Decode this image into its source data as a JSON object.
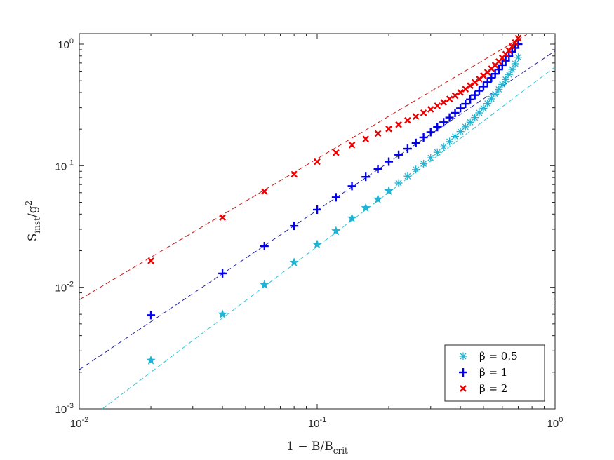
{
  "chart_data": {
    "type": "scatter",
    "xscale": "log",
    "yscale": "log",
    "xlim": [
      0.01,
      1
    ],
    "ylim": [
      0.001,
      1.2
    ],
    "xticks": [
      {
        "value": 0.01,
        "base": "10",
        "exp": "-2"
      },
      {
        "value": 0.1,
        "base": "10",
        "exp": "-1"
      },
      {
        "value": 1,
        "base": "10",
        "exp": "0"
      }
    ],
    "yticks": [
      {
        "value": 0.001,
        "base": "10",
        "exp": "-3"
      },
      {
        "value": 0.01,
        "base": "10",
        "exp": "-2"
      },
      {
        "value": 0.1,
        "base": "10",
        "exp": "-1"
      },
      {
        "value": 1,
        "base": "10",
        "exp": "0"
      }
    ],
    "xlabel": {
      "main": "1 − B/B",
      "sub": "crit"
    },
    "ylabel": {
      "main": "S",
      "sub": "inst",
      "tail": "/g",
      "sup": "2"
    },
    "grid": false,
    "legend_position": "bottom-right",
    "series": [
      {
        "label": "β = 0.5",
        "color": "#1fb3d2",
        "marker": "asterisk",
        "fit_color": "#30c8d8",
        "x": [
          0.02,
          0.04,
          0.06,
          0.08,
          0.1,
          0.12,
          0.14,
          0.16,
          0.18,
          0.2,
          0.22,
          0.24,
          0.26,
          0.28,
          0.3,
          0.32,
          0.34,
          0.36,
          0.38,
          0.4,
          0.42,
          0.44,
          0.46,
          0.48,
          0.5,
          0.52,
          0.54,
          0.56,
          0.58,
          0.6,
          0.62,
          0.64,
          0.66,
          0.68,
          0.7
        ],
        "y": [
          0.0025,
          0.006,
          0.0105,
          0.016,
          0.0225,
          0.029,
          0.037,
          0.045,
          0.053,
          0.062,
          0.072,
          0.082,
          0.093,
          0.104,
          0.116,
          0.129,
          0.143,
          0.158,
          0.174,
          0.191,
          0.209,
          0.228,
          0.249,
          0.272,
          0.297,
          0.325,
          0.355,
          0.388,
          0.425,
          0.466,
          0.512,
          0.563,
          0.62,
          0.69,
          0.78
        ],
        "fit_x": [
          0.0125,
          1
        ],
        "fit_y": [
          0.001,
          0.65
        ]
      },
      {
        "label": "β = 1",
        "color": "#0000ee",
        "marker": "plus",
        "fit_color": "#1a1aa8",
        "x": [
          0.02,
          0.04,
          0.06,
          0.08,
          0.1,
          0.12,
          0.14,
          0.16,
          0.18,
          0.2,
          0.22,
          0.24,
          0.26,
          0.28,
          0.3,
          0.32,
          0.34,
          0.36,
          0.38,
          0.4,
          0.42,
          0.44,
          0.46,
          0.48,
          0.5,
          0.52,
          0.54,
          0.56,
          0.58,
          0.6,
          0.62,
          0.64,
          0.66,
          0.68,
          0.7
        ],
        "y": [
          0.0059,
          0.013,
          0.0218,
          0.032,
          0.0435,
          0.055,
          0.068,
          0.081,
          0.094,
          0.108,
          0.123,
          0.138,
          0.154,
          0.171,
          0.189,
          0.208,
          0.228,
          0.249,
          0.272,
          0.297,
          0.323,
          0.351,
          0.381,
          0.413,
          0.448,
          0.486,
          0.527,
          0.571,
          0.619,
          0.672,
          0.73,
          0.794,
          0.865,
          0.93,
          1.0
        ],
        "fit_x": [
          0.01,
          1
        ],
        "fit_y": [
          0.0021,
          0.88
        ]
      },
      {
        "label": "β = 2",
        "color": "#ee0000",
        "marker": "cross",
        "fit_color": "#c81414",
        "x": [
          0.02,
          0.04,
          0.06,
          0.08,
          0.1,
          0.12,
          0.14,
          0.16,
          0.18,
          0.2,
          0.22,
          0.24,
          0.26,
          0.28,
          0.3,
          0.32,
          0.34,
          0.36,
          0.38,
          0.4,
          0.42,
          0.44,
          0.46,
          0.48,
          0.5,
          0.52,
          0.54,
          0.56,
          0.58,
          0.6,
          0.62,
          0.64,
          0.66,
          0.68,
          0.7
        ],
        "y": [
          0.0165,
          0.0375,
          0.0615,
          0.085,
          0.108,
          0.128,
          0.148,
          0.166,
          0.184,
          0.201,
          0.218,
          0.236,
          0.254,
          0.272,
          0.291,
          0.311,
          0.332,
          0.354,
          0.377,
          0.401,
          0.427,
          0.455,
          0.485,
          0.517,
          0.551,
          0.588,
          0.628,
          0.671,
          0.718,
          0.769,
          0.826,
          0.888,
          0.956,
          1.03,
          1.12
        ],
        "fit_x": [
          0.01,
          0.76
        ],
        "fit_y": [
          0.0079,
          1.2
        ]
      }
    ]
  }
}
